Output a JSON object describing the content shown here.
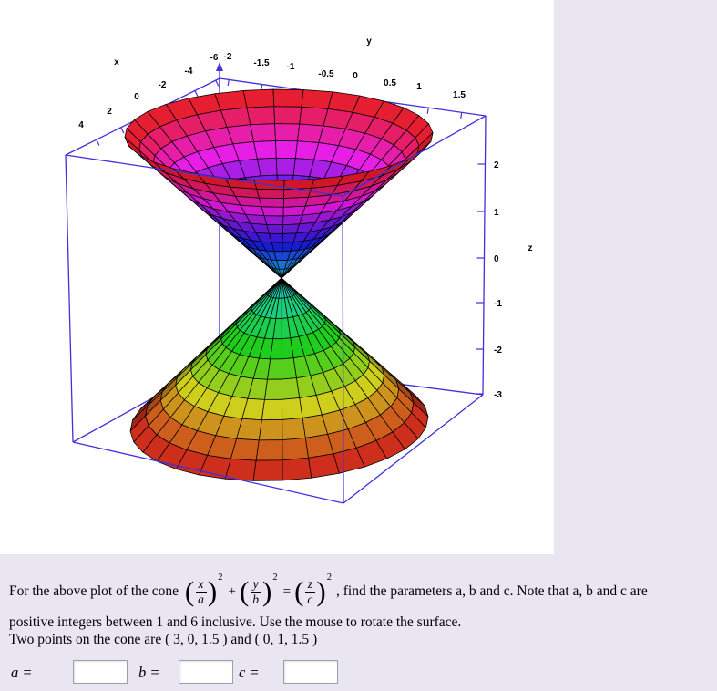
{
  "page": {
    "background": "#e9e6f1",
    "plot_background": "#ffffff"
  },
  "chart_data": {
    "type": "3d-surface",
    "title": "",
    "surface_equation": "(x/a)^2 + (y/b)^2 = (z/c)^2  (double cone, mouse-rotatable)",
    "axes": {
      "x": {
        "label": "x",
        "ticks": [
          "4",
          "2",
          "0",
          "-2",
          "-4",
          "-6"
        ]
      },
      "y": {
        "label": "y",
        "ticks": [
          "-2",
          "-1.5",
          "-1",
          "-0.5",
          "0",
          "0.5",
          "1",
          "1.5"
        ]
      },
      "z": {
        "label": "z",
        "ticks": [
          "2",
          "1",
          "0",
          "-1",
          "-2",
          "-3"
        ]
      }
    },
    "legend": "none",
    "grid": "black wireframe mesh on surface",
    "box_color": "#4030dd",
    "mesh_color": "#000000",
    "colormap_note": "rainbow by height: upper cone cyan-blue at apex to red at top rim; lower cone teal at apex to red at bottom rim",
    "upper_cone_hues_apex_to_rim": [
      196,
      210,
      224,
      238,
      252,
      266,
      282,
      300,
      318,
      338,
      354
    ],
    "lower_cone_hues_apex_to_rim": [
      168,
      152,
      136,
      119,
      100,
      80,
      60,
      40,
      22,
      6
    ]
  },
  "question": {
    "line1_pre": "For the above plot of the cone ",
    "formula": {
      "terms": [
        {
          "num": "x",
          "den": "a"
        },
        {
          "num": "y",
          "den": "b"
        },
        {
          "num": "z",
          "den": "c"
        }
      ],
      "exponent": "2",
      "plus": "+",
      "equals": "="
    },
    "line1_post": ", find the parameters a, b and c. Note that a, b and c are",
    "line2": "positive integers between 1 and 6 inclusive. Use the mouse to rotate the surface.",
    "line3": "Two points on the cone are ( 3, 0, 1.5 ) and ( 0, 1, 1.5 )",
    "answers": [
      {
        "label": "a =",
        "value": ""
      },
      {
        "label": "b =",
        "value": ""
      },
      {
        "label": "c =",
        "value": ""
      }
    ]
  }
}
